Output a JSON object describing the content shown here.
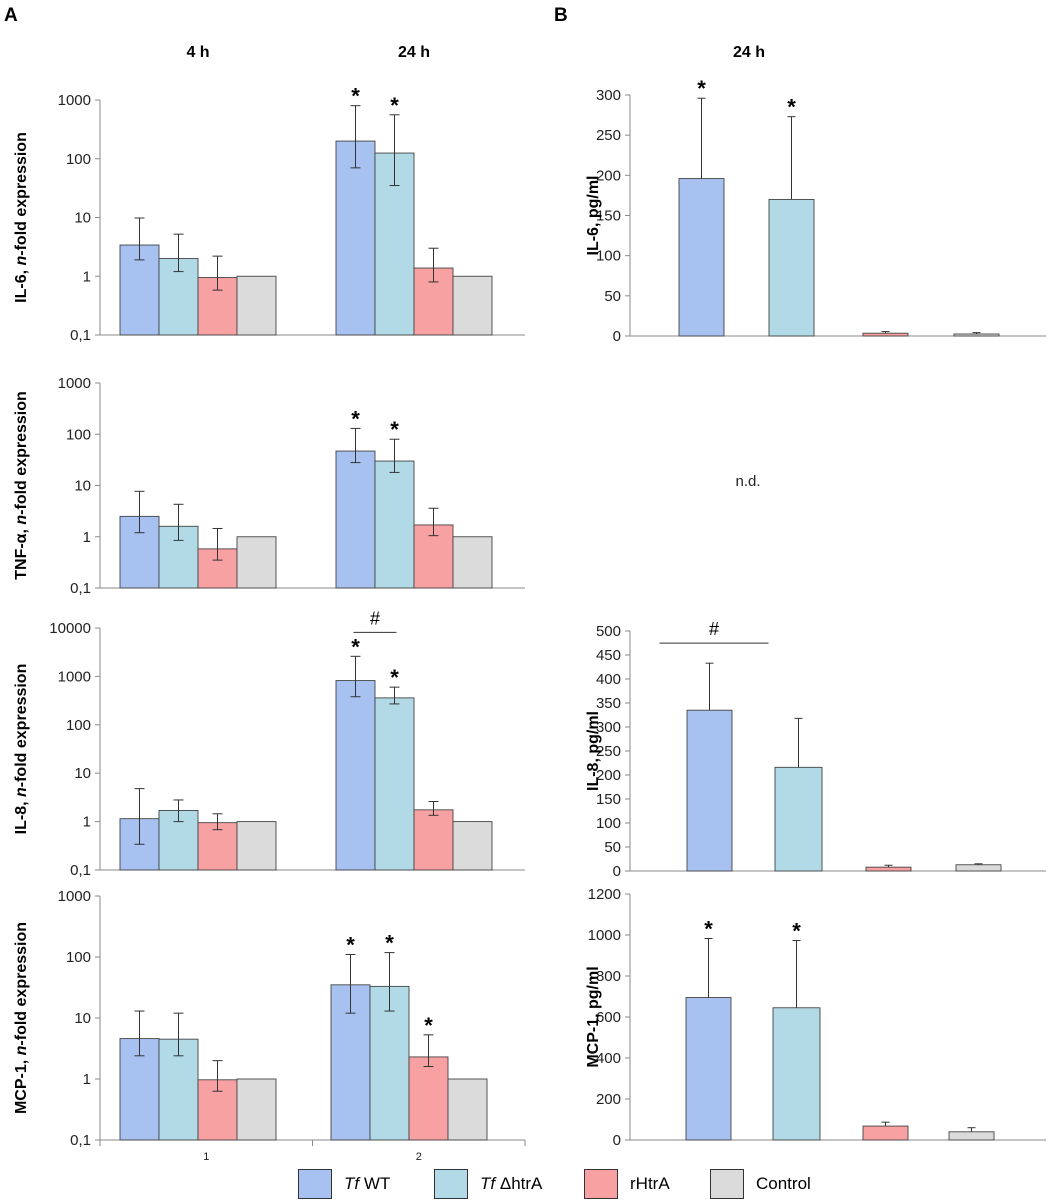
{
  "panel_labels": [
    "A",
    "B"
  ],
  "column_titles": {
    "a_4h": "4 h",
    "a_24h": "24 h",
    "b_24h": "24 h"
  },
  "not_determined": "n.d.",
  "colors": {
    "tf_wt": "#a7c1f1",
    "tf_dhtra": "#b2dae6",
    "rhtra": "#f8a1a3",
    "control": "#dbdbdb"
  },
  "legend": [
    {
      "prefix": "Tf",
      "text": " WT",
      "color": "#a7c1f1"
    },
    {
      "prefix": "Tf",
      "text": " ΔhtrA",
      "color": "#b2dae6"
    },
    {
      "prefix": "",
      "text": "rHtrA",
      "color": "#f8a1a3"
    },
    {
      "prefix": "",
      "text": "Control",
      "color": "#dbdbdb"
    }
  ],
  "chart_data": [
    {
      "id": "A1",
      "type": "bar",
      "scale": "log",
      "ylim": [
        0.1,
        1000
      ],
      "yticks": [
        "0,1",
        "1",
        "10",
        "100",
        "1000"
      ],
      "ylabel": "IL-6, n-fold expression",
      "categories": [
        "4 h",
        "24 h"
      ],
      "series": [
        {
          "name": "Tf WT",
          "values": [
            3.4,
            200
          ],
          "err_low": [
            1.9,
            70
          ],
          "err_high": [
            9.8,
            800
          ]
        },
        {
          "name": "Tf ΔhtrA",
          "values": [
            2.0,
            125
          ],
          "err_low": [
            1.2,
            35
          ],
          "err_high": [
            5.2,
            560
          ]
        },
        {
          "name": "rHtrA",
          "values": [
            0.95,
            1.38
          ],
          "err_low": [
            0.58,
            0.8
          ],
          "err_high": [
            2.2,
            3.0
          ]
        },
        {
          "name": "Control",
          "values": [
            1.0,
            1.0
          ]
        }
      ],
      "annotations": [
        {
          "label": "*",
          "category": 1,
          "series": 0
        },
        {
          "label": "*",
          "category": 1,
          "series": 1
        }
      ]
    },
    {
      "id": "A2",
      "type": "bar",
      "scale": "log",
      "ylim": [
        0.1,
        1000
      ],
      "yticks": [
        "0,1",
        "1",
        "10",
        "100",
        "1000"
      ],
      "ylabel": "TNF-α, n-fold expression",
      "categories": [
        "4 h",
        "24 h"
      ],
      "series": [
        {
          "name": "Tf WT",
          "values": [
            2.5,
            47
          ],
          "err_low": [
            1.2,
            28
          ],
          "err_high": [
            7.7,
            130
          ]
        },
        {
          "name": "Tf ΔhtrA",
          "values": [
            1.6,
            30
          ],
          "err_low": [
            0.85,
            18
          ],
          "err_high": [
            4.3,
            80
          ]
        },
        {
          "name": "rHtrA",
          "values": [
            0.58,
            1.7
          ],
          "err_low": [
            0.35,
            1.05
          ],
          "err_high": [
            1.45,
            3.6
          ]
        },
        {
          "name": "Control",
          "values": [
            1.0,
            1.0
          ]
        }
      ],
      "annotations": [
        {
          "label": "*",
          "category": 1,
          "series": 0
        },
        {
          "label": "*",
          "category": 1,
          "series": 1
        }
      ]
    },
    {
      "id": "A3",
      "type": "bar",
      "scale": "log",
      "ylim": [
        0.1,
        10000
      ],
      "yticks": [
        "0,1",
        "1",
        "10",
        "100",
        "1000",
        "10000"
      ],
      "ylabel": "IL-8, n-fold expression",
      "categories": [
        "4 h",
        "24 h"
      ],
      "series": [
        {
          "name": "Tf WT",
          "values": [
            1.15,
            820
          ],
          "err_low": [
            0.34,
            380
          ],
          "err_high": [
            4.8,
            2600
          ]
        },
        {
          "name": "Tf ΔhtrA",
          "values": [
            1.7,
            360
          ],
          "err_low": [
            1.0,
            270
          ],
          "err_high": [
            2.8,
            600
          ]
        },
        {
          "name": "rHtrA",
          "values": [
            0.95,
            1.75
          ],
          "err_low": [
            0.68,
            1.35
          ],
          "err_high": [
            1.45,
            2.6
          ]
        },
        {
          "name": "Control",
          "values": [
            1.0,
            1.0
          ]
        }
      ],
      "annotations": [
        {
          "label": "*",
          "category": 1,
          "series": 0
        },
        {
          "label": "*",
          "category": 1,
          "series": 1
        },
        {
          "label": "#",
          "category": 1,
          "between": [
            0,
            1
          ]
        }
      ]
    },
    {
      "id": "A4",
      "type": "bar",
      "scale": "log",
      "ylim": [
        0.1,
        1000
      ],
      "yticks": [
        "0,1",
        "1",
        "10",
        "100",
        "1000"
      ],
      "ylabel": "MCP-1, n-fold expression",
      "categories": [
        "4 h",
        "24 h"
      ],
      "x_tick_labels": [
        "1",
        "2"
      ],
      "series": [
        {
          "name": "Tf WT",
          "values": [
            4.6,
            35
          ],
          "err_low": [
            2.4,
            12
          ],
          "err_high": [
            13,
            110
          ]
        },
        {
          "name": "Tf ΔhtrA",
          "values": [
            4.5,
            33
          ],
          "err_low": [
            2.4,
            13
          ],
          "err_high": [
            12,
            118
          ]
        },
        {
          "name": "rHtrA",
          "values": [
            0.97,
            2.3
          ],
          "err_low": [
            0.63,
            1.6
          ],
          "err_high": [
            2.0,
            5.3
          ]
        },
        {
          "name": "Control",
          "values": [
            1.0,
            1.0
          ]
        }
      ],
      "annotations": [
        {
          "label": "*",
          "category": 1,
          "series": 0
        },
        {
          "label": "*",
          "category": 1,
          "series": 1
        },
        {
          "label": "*",
          "category": 1,
          "series": 2
        }
      ]
    },
    {
      "id": "B1",
      "type": "bar",
      "scale": "linear",
      "ylim": [
        0,
        300
      ],
      "yticks": [
        "0",
        "50",
        "100",
        "150",
        "200",
        "250",
        "300"
      ],
      "ylabel": "IL-6, pg/ml",
      "categories": [
        "Tf WT",
        "Tf ΔhtrA",
        "rHtrA",
        "Control"
      ],
      "values": [
        196,
        170,
        3.5,
        2.5
      ],
      "err_high": [
        296,
        273,
        5.5,
        4.2
      ],
      "annotations": [
        {
          "label": "*",
          "index": 0
        },
        {
          "label": "*",
          "index": 1
        }
      ]
    },
    {
      "id": "B3",
      "type": "bar",
      "scale": "linear",
      "ylim": [
        0,
        500
      ],
      "yticks": [
        "0",
        "50",
        "100",
        "150",
        "200",
        "250",
        "300",
        "350",
        "400",
        "450",
        "500"
      ],
      "ylabel": "IL-8, pg/ml",
      "categories": [
        "Tf WT",
        "Tf ΔhtrA",
        "rHtrA",
        "Control"
      ],
      "values": [
        335,
        216,
        8,
        13
      ],
      "err_high": [
        433,
        318,
        12,
        15
      ],
      "annotations": [
        {
          "label": "#",
          "between": [
            0,
            1
          ]
        }
      ]
    },
    {
      "id": "B4",
      "type": "bar",
      "scale": "linear",
      "ylim": [
        0,
        1200
      ],
      "yticks": [
        "0",
        "200",
        "400",
        "600",
        "800",
        "1000",
        "1200"
      ],
      "ylabel": "MCP-1, pg/ml",
      "categories": [
        "Tf WT",
        "Tf ΔhtrA",
        "rHtrA",
        "Control"
      ],
      "values": [
        695,
        645,
        68,
        40
      ],
      "err_high": [
        983,
        973,
        87,
        60
      ],
      "annotations": [
        {
          "label": "*",
          "index": 0
        },
        {
          "label": "*",
          "index": 1
        }
      ]
    }
  ]
}
